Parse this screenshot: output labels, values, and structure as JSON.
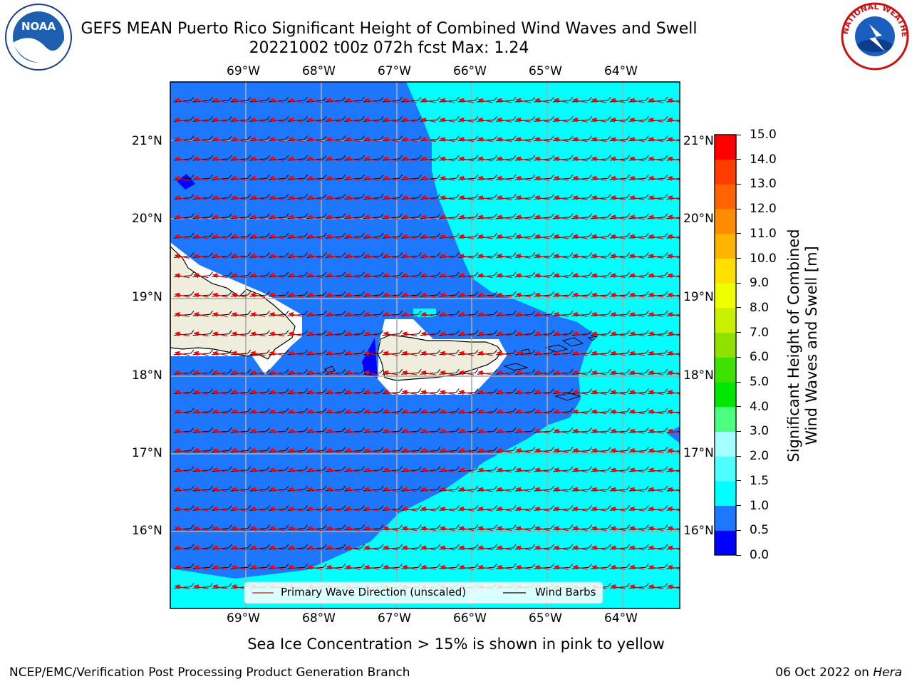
{
  "header": {
    "title_line1": "GEFS MEAN Puerto Rico Significant Height of Combined Wind Waves and Swell",
    "title_line2": "20221002 t00z 072h fcst   Max: 1.24"
  },
  "logos": {
    "noaa_text": "NOAA",
    "nws_text": "NATIONAL WEATHER SERVICE"
  },
  "map": {
    "lon_labels": [
      "69°W",
      "68°W",
      "67°W",
      "66°W",
      "65°W",
      "64°W"
    ],
    "lat_labels": [
      "21°N",
      "20°N",
      "19°N",
      "18°N",
      "17°N",
      "16°N"
    ]
  },
  "legend": {
    "primary_wave": "Primary Wave Direction (unscaled)",
    "wind_barbs": "Wind Barbs"
  },
  "colorbar": {
    "label_line1": "Significant Height of Combined",
    "label_line2": "Wind Waves and Swell [m]",
    "ticks": [
      "0.0",
      "0.5",
      "1.0",
      "1.5",
      "2.0",
      "3.0",
      "4.0",
      "5.0",
      "6.0",
      "7.0",
      "8.0",
      "9.0",
      "10.0",
      "11.0",
      "12.0",
      "13.0",
      "14.0",
      "15.0"
    ],
    "colors": [
      "#0000ff",
      "#1e78ff",
      "#00ffff",
      "#4dffff",
      "#a6ffff",
      "#4dff80",
      "#00e600",
      "#40e000",
      "#90e000",
      "#c8f000",
      "#f0ff00",
      "#ffe000",
      "#ffb400",
      "#ff8c00",
      "#ff6400",
      "#ff3c00",
      "#ff0000"
    ]
  },
  "footer": {
    "caption": "Sea Ice Concentration > 15% is shown in pink to yellow",
    "org": "NCEP/EMC/Verification Post Processing Product Generation Branch",
    "date": "06 Oct 2022 on",
    "host": "Hera"
  }
}
